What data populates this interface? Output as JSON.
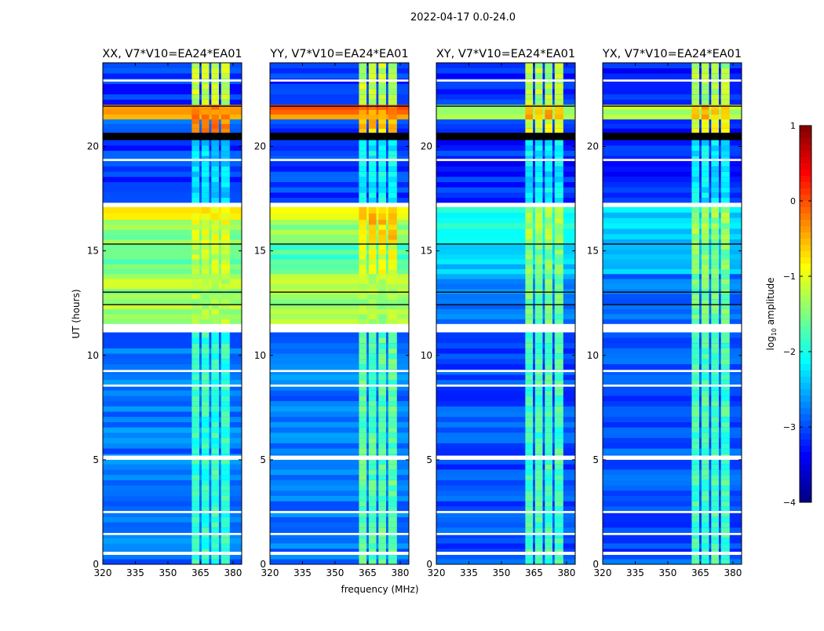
{
  "chart_data": {
    "type": "heatmap",
    "title": "2022-04-17 0.0-24.0",
    "xlabel": "frequency (MHz)",
    "ylabel": "UT (hours)",
    "xlim": [
      320,
      384
    ],
    "ylim": [
      0,
      24
    ],
    "xticks": [
      "320",
      "335",
      "350",
      "365",
      "380"
    ],
    "xtick_values": [
      320,
      335,
      350,
      365,
      380
    ],
    "yticks": [
      "0",
      "5",
      "10",
      "15",
      "20"
    ],
    "ytick_values": [
      0,
      5,
      10,
      15,
      20
    ],
    "colorbar": {
      "label_main": "log",
      "label_sub": "10",
      "label_tail": " amplitude",
      "range": [
        -4,
        1
      ],
      "ticks": [
        "1",
        "0",
        "−1",
        "−2",
        "−3",
        "−4"
      ],
      "tick_values": [
        1,
        0,
        -1,
        -2,
        -3,
        -4
      ],
      "colormap": "jet"
    },
    "rfi_columns_mhz": [
      [
        361,
        364.5
      ],
      [
        365.5,
        369
      ],
      [
        370,
        373.5
      ],
      [
        374.5,
        378.5
      ]
    ],
    "flagged_hours": [
      [
        0.45,
        0.6
      ],
      [
        1.4,
        1.5
      ],
      [
        2.45,
        2.55
      ],
      [
        5.0,
        5.2
      ],
      [
        8.5,
        8.6
      ],
      [
        9.2,
        9.3
      ],
      [
        11.1,
        11.5
      ],
      [
        17.1,
        17.3
      ],
      [
        19.3,
        19.4
      ],
      [
        23.1,
        23.2
      ]
    ],
    "masked_hours": [
      [
        20.3,
        20.65
      ],
      [
        13.0,
        13.05
      ],
      [
        12.4,
        12.45
      ],
      [
        15.3,
        15.35
      ],
      [
        21.9,
        21.95
      ]
    ],
    "panels": [
      {
        "title": "XX, V7*V10=EA24*EA01",
        "segments": [
          [
            0,
            11.1,
            -2.8,
            -1.9
          ],
          [
            11.5,
            13.9,
            -1.3,
            -1.3
          ],
          [
            13.9,
            15.3,
            -1.7,
            -1.2
          ],
          [
            15.3,
            16.5,
            -1.5,
            -1.0
          ],
          [
            16.5,
            17.1,
            -0.9,
            -0.8
          ],
          [
            17.3,
            20.3,
            -3.1,
            -2.3
          ],
          [
            20.65,
            21.3,
            -3.0,
            -0.3
          ],
          [
            21.3,
            22.0,
            -0.3,
            -0.2
          ],
          [
            22.0,
            24,
            -3.1,
            -1.2
          ]
        ]
      },
      {
        "title": "YY, V7*V10=EA24*EA01",
        "segments": [
          [
            0,
            11.1,
            -2.8,
            -1.7
          ],
          [
            11.5,
            13.9,
            -1.3,
            -1.3
          ],
          [
            13.9,
            15.3,
            -1.7,
            -1.0
          ],
          [
            15.3,
            16.5,
            -1.4,
            -0.6
          ],
          [
            16.5,
            17.1,
            -0.8,
            -0.5
          ],
          [
            17.3,
            20.3,
            -3.1,
            -2.1
          ],
          [
            20.65,
            21.3,
            -3.1,
            -0.6
          ],
          [
            21.3,
            22.0,
            -0.2,
            -0.3
          ],
          [
            22.0,
            24,
            -3.1,
            -1.2
          ]
        ]
      },
      {
        "title": "XY, V7*V10=EA24*EA01",
        "segments": [
          [
            0,
            11.1,
            -3.0,
            -1.8
          ],
          [
            11.5,
            13.9,
            -2.7,
            -1.6
          ],
          [
            13.9,
            15.3,
            -2.4,
            -1.5
          ],
          [
            15.3,
            17.1,
            -2.1,
            -1.3
          ],
          [
            17.3,
            20.3,
            -3.2,
            -2.2
          ],
          [
            20.65,
            21.3,
            -3.2,
            -1.0
          ],
          [
            21.3,
            22.0,
            -1.3,
            -0.5
          ],
          [
            22.0,
            24,
            -3.2,
            -1.3
          ]
        ]
      },
      {
        "title": "YX, V7*V10=EA24*EA01",
        "segments": [
          [
            0,
            11.1,
            -3.0,
            -1.8
          ],
          [
            11.5,
            13.9,
            -2.8,
            -1.6
          ],
          [
            13.9,
            15.3,
            -2.5,
            -1.5
          ],
          [
            15.3,
            17.1,
            -2.3,
            -1.4
          ],
          [
            17.3,
            20.3,
            -3.2,
            -2.2
          ],
          [
            20.65,
            21.3,
            -3.2,
            -1.0
          ],
          [
            21.3,
            22.0,
            -1.2,
            -0.5
          ],
          [
            22.0,
            24,
            -3.2,
            -1.3
          ]
        ]
      }
    ]
  }
}
